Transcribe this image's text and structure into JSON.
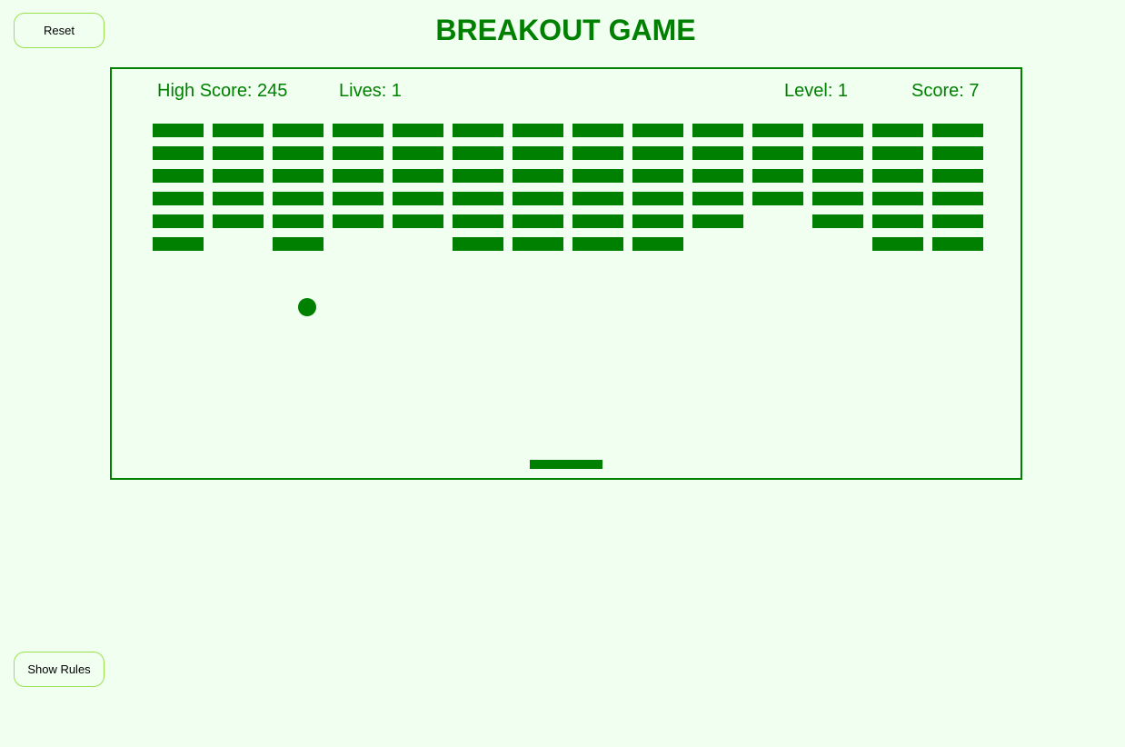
{
  "title": "BREAKOUT GAME",
  "buttons": {
    "reset_label": "Reset",
    "rules_label": "Show Rules"
  },
  "hud": {
    "high_score": "High Score: 245",
    "lives": "Lives: 1",
    "level": "Level: 1",
    "score": "Score: 7"
  },
  "colors": {
    "accent": "#008000",
    "background": "#f0fff0",
    "button_border": "#9be24f"
  },
  "bricks": {
    "columns": 14,
    "rows": 6,
    "present": [
      [
        1,
        1,
        1,
        1,
        1,
        1,
        1,
        1,
        1,
        1,
        1,
        1,
        1,
        1
      ],
      [
        1,
        1,
        1,
        1,
        1,
        1,
        1,
        1,
        1,
        1,
        1,
        1,
        1,
        1
      ],
      [
        1,
        1,
        1,
        1,
        1,
        1,
        1,
        1,
        1,
        1,
        1,
        1,
        1,
        1
      ],
      [
        1,
        1,
        1,
        1,
        1,
        1,
        1,
        1,
        1,
        1,
        1,
        1,
        1,
        1
      ],
      [
        1,
        1,
        1,
        1,
        1,
        1,
        1,
        1,
        1,
        1,
        0,
        1,
        1,
        1
      ],
      [
        1,
        0,
        1,
        0,
        0,
        1,
        1,
        1,
        1,
        0,
        0,
        0,
        1,
        1
      ]
    ]
  }
}
